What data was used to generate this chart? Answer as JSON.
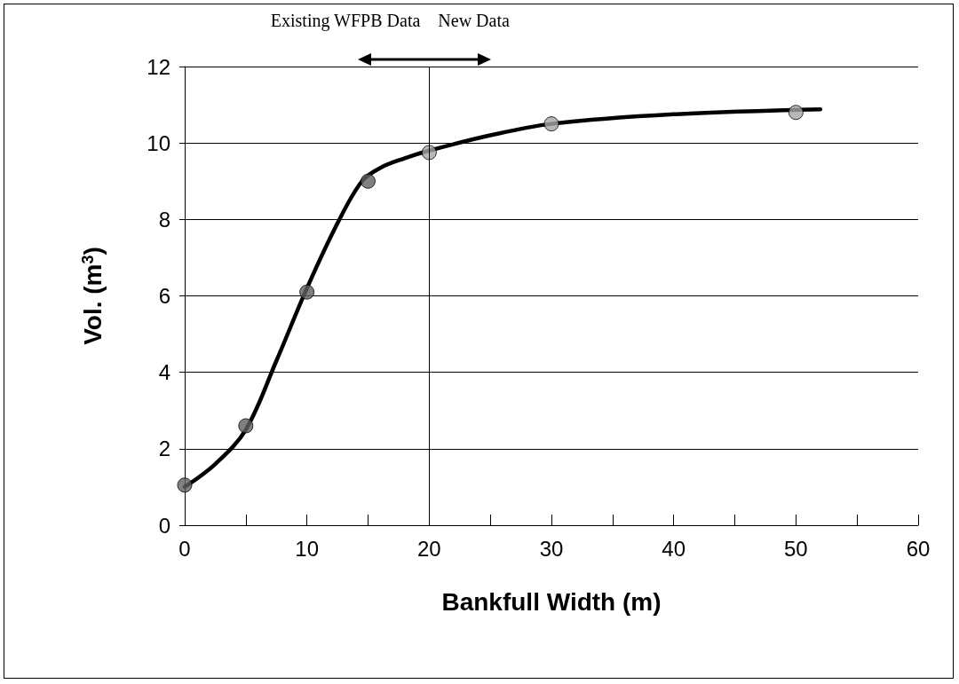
{
  "chart_data": {
    "type": "scatter",
    "xlabel": "Bankfull Width (m)",
    "ylabel": "Vol. (m$^{3}$)",
    "series": [
      {
        "type": "line",
        "color": "#000000",
        "marker": "none",
        "line_style": "solid",
        "x": [
          0,
          2.5,
          5,
          7.5,
          10,
          12.5,
          14.5,
          16,
          18,
          20,
          25,
          30,
          40,
          52
        ],
        "values": [
          1.0,
          1.6,
          2.5,
          4.3,
          6.2,
          7.9,
          9.0,
          9.35,
          9.6,
          9.8,
          10.2,
          10.5,
          10.75,
          10.88
        ]
      },
      {
        "color": "#606060",
        "marker": "circle",
        "x": [
          0,
          5,
          10,
          15
        ],
        "values": [
          1.05,
          2.6,
          6.1,
          9.0
        ]
      },
      {
        "color": "#a6a6a6",
        "marker": "circle",
        "x": [
          20,
          30,
          50
        ],
        "values": [
          9.75,
          10.5,
          10.8
        ]
      }
    ],
    "xlim": [
      0,
      60
    ],
    "xticks": [
      0,
      {
        "value": 5,
        "label": null
      },
      10,
      {
        "value": 15,
        "label": null
      },
      20,
      {
        "value": 25,
        "label": null
      },
      30,
      {
        "value": 35,
        "label": null
      },
      40,
      {
        "value": 45,
        "label": null
      },
      50,
      {
        "value": 55,
        "label": null
      },
      60
    ],
    "ylim": [
      0,
      12
    ],
    "yticks": [
      0,
      2,
      4,
      6,
      8,
      10,
      12
    ],
    "grid": "y",
    "ref_lines": [
      {
        "axis": "x",
        "value": 20,
        "color": "#000000"
      }
    ],
    "annotations": [
      "Existing WFPB Data",
      "New Data"
    ]
  }
}
